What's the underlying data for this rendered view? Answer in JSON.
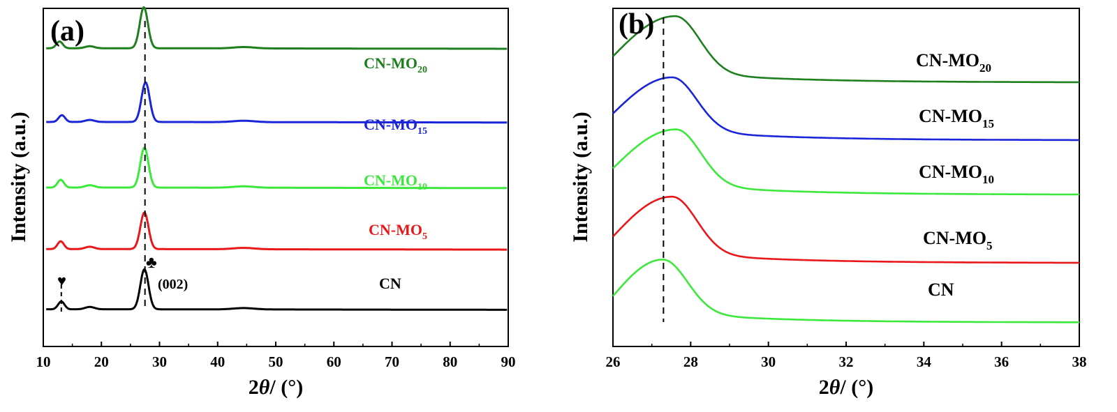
{
  "chart_data": [
    {
      "type": "line",
      "panel": "(a)",
      "xlabel_prefix": "2",
      "xlabel_theta": "θ",
      "xlabel_suffix": "/ (°)",
      "ylabel": "Intensity (a.u.)",
      "xlim": [
        10,
        90
      ],
      "xticks": [
        "10",
        "20",
        "30",
        "40",
        "50",
        "60",
        "70",
        "80",
        "90"
      ],
      "y_ticks_shown": false,
      "peak_labels": {
        "main": "(002)",
        "main_symbol": "♣",
        "minor_symbol": "♥"
      },
      "reference_lines_x": [
        27.5,
        13.1
      ],
      "series": [
        {
          "name": "CN",
          "label_main": "CN",
          "label_sub": "",
          "color": "#000000",
          "offset": 0.11,
          "peaks": [
            {
              "x": 13.1,
              "h": 0.023,
              "w": 0.55
            },
            {
              "x": 18.0,
              "h": 0.007,
              "w": 0.8
            },
            {
              "x": 27.4,
              "h": 0.118,
              "w": 0.7
            },
            {
              "x": 44.5,
              "h": 0.004,
              "w": 1.8
            }
          ]
        },
        {
          "name": "CN-MO5",
          "label_main": "CN-MO",
          "label_sub": "5",
          "color": "#e8171a",
          "offset": 0.288,
          "peaks": [
            {
              "x": 13.0,
              "h": 0.023,
              "w": 0.55
            },
            {
              "x": 18.0,
              "h": 0.007,
              "w": 0.8
            },
            {
              "x": 27.4,
              "h": 0.108,
              "w": 0.7
            },
            {
              "x": 44.5,
              "h": 0.004,
              "w": 1.8
            }
          ]
        },
        {
          "name": "CN-MO10",
          "label_main": "CN-MO",
          "label_sub": "10",
          "color": "#3de83d",
          "offset": 0.47,
          "peaks": [
            {
              "x": 13.0,
              "h": 0.023,
              "w": 0.55
            },
            {
              "x": 18.0,
              "h": 0.007,
              "w": 0.8
            },
            {
              "x": 27.4,
              "h": 0.118,
              "w": 0.7
            },
            {
              "x": 44.5,
              "h": 0.004,
              "w": 1.8
            }
          ]
        },
        {
          "name": "CN-MO15",
          "label_main": "CN-MO",
          "label_sub": "15",
          "color": "#1a24d8",
          "offset": 0.664,
          "peaks": [
            {
              "x": 13.2,
              "h": 0.02,
              "w": 0.55
            },
            {
              "x": 18.0,
              "h": 0.006,
              "w": 0.8
            },
            {
              "x": 27.6,
              "h": 0.117,
              "w": 0.7
            },
            {
              "x": 44.5,
              "h": 0.004,
              "w": 1.8
            }
          ]
        },
        {
          "name": "CN-MO20",
          "label_main": "CN-MO",
          "label_sub": "20",
          "color": "#1d7f1d",
          "offset": 0.882,
          "peaks": [
            {
              "x": 12.8,
              "h": 0.02,
              "w": 0.55
            },
            {
              "x": 18.0,
              "h": 0.006,
              "w": 0.8
            },
            {
              "x": 27.3,
              "h": 0.121,
              "w": 0.7
            },
            {
              "x": 44.5,
              "h": 0.004,
              "w": 1.8
            }
          ]
        }
      ]
    },
    {
      "type": "line",
      "panel": "(b)",
      "xlabel_prefix": "2",
      "xlabel_theta": "θ",
      "xlabel_suffix": "/ (°)",
      "ylabel": "Intensity (a.u.)",
      "xlim": [
        26,
        38
      ],
      "xticks": [
        "26",
        "28",
        "30",
        "32",
        "34",
        "36",
        "38"
      ],
      "y_ticks_shown": false,
      "reference_lines_x": [
        27.3
      ],
      "series": [
        {
          "name": "CN",
          "label_main": "CN",
          "label_sub": "",
          "color": "#3de83d",
          "offset": 0.071,
          "start": 0.149,
          "peak": {
            "x": 27.28,
            "h": 0.186
          }
        },
        {
          "name": "CN-MO5",
          "label_main": "CN-MO",
          "label_sub": "5",
          "color": "#e8171a",
          "offset": 0.247,
          "start": 0.325,
          "peak": {
            "x": 27.52,
            "h": 0.196
          }
        },
        {
          "name": "CN-MO10",
          "label_main": "CN-MO",
          "label_sub": "10",
          "color": "#3de83d",
          "offset": 0.449,
          "start": 0.527,
          "peak": {
            "x": 27.62,
            "h": 0.193
          }
        },
        {
          "name": "CN-MO15",
          "label_main": "CN-MO",
          "label_sub": "15",
          "color": "#1a24d8",
          "offset": 0.61,
          "start": 0.689,
          "peak": {
            "x": 27.52,
            "h": 0.186
          }
        },
        {
          "name": "CN-MO20",
          "label_main": "CN-MO",
          "label_sub": "20",
          "color": "#1d7f1d",
          "offset": 0.781,
          "start": 0.858,
          "peak": {
            "x": 27.6,
            "h": 0.196
          }
        }
      ]
    }
  ]
}
